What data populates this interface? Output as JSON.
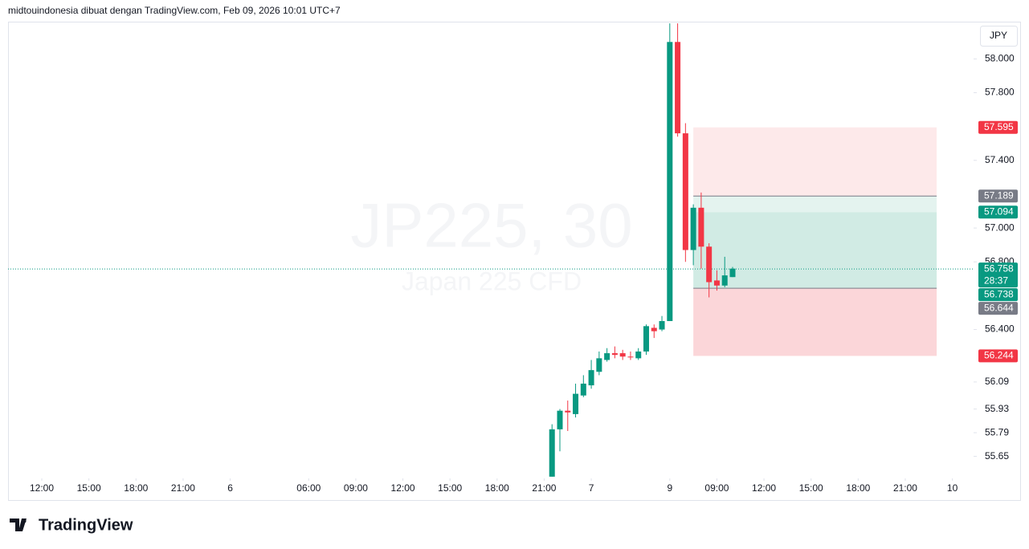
{
  "header": "midtouindonesia dibuat dengan TradingView.com, Feb 09, 2026 10:01 UTC+7",
  "watermark": {
    "symbol": "JP225, 30",
    "name": "Japan 225 CFD"
  },
  "currency": "JPY",
  "logo": "TradingView",
  "chart_data": {
    "type": "candlestick",
    "up_color": "#089981",
    "down_color": "#f23645",
    "x": [
      65,
      66,
      67,
      68,
      69,
      70,
      71,
      72,
      73,
      74,
      75,
      76,
      77,
      78,
      79,
      80,
      81,
      82,
      83,
      84,
      85,
      86,
      87,
      88
    ],
    "open": [
      55.53,
      55.81,
      55.92,
      55.9,
      56.01,
      56.07,
      56.15,
      56.22,
      56.26,
      56.26,
      56.24,
      56.23,
      56.27,
      56.41,
      56.4,
      56.45,
      58.1,
      57.56,
      56.87,
      57.12,
      56.89,
      56.69,
      56.66,
      56.71
    ],
    "high": [
      55.84,
      55.93,
      55.98,
      56.08,
      56.13,
      56.22,
      56.27,
      56.29,
      56.3,
      56.28,
      56.27,
      56.29,
      56.43,
      56.43,
      56.48,
      58.21,
      58.21,
      57.62,
      57.14,
      57.21,
      56.91,
      56.75,
      56.83,
      56.77
    ],
    "low": [
      55.53,
      55.68,
      55.8,
      55.88,
      56.0,
      56.05,
      56.13,
      56.21,
      56.23,
      56.22,
      56.22,
      56.22,
      56.25,
      56.35,
      56.39,
      56.45,
      57.54,
      56.8,
      56.78,
      56.76,
      56.59,
      56.63,
      56.65,
      56.71
    ],
    "close": [
      55.81,
      55.92,
      55.91,
      56.02,
      56.08,
      56.16,
      56.23,
      56.26,
      56.25,
      56.24,
      56.235,
      56.27,
      56.42,
      56.39,
      56.45,
      58.1,
      57.56,
      56.87,
      57.12,
      56.89,
      56.68,
      56.66,
      56.72,
      56.76
    ],
    "xlim": [
      -4.3,
      118.7
    ],
    "xticks": [
      {
        "value": 0,
        "label": "12:00"
      },
      {
        "value": 6,
        "label": "15:00"
      },
      {
        "value": 12,
        "label": "18:00"
      },
      {
        "value": 18,
        "label": "21:00"
      },
      {
        "value": 24,
        "label": "6"
      },
      {
        "value": 34,
        "label": "06:00"
      },
      {
        "value": 40,
        "label": "09:00"
      },
      {
        "value": 46,
        "label": "12:00"
      },
      {
        "value": 52,
        "label": "15:00"
      },
      {
        "value": 58,
        "label": "18:00"
      },
      {
        "value": 64,
        "label": "21:00"
      },
      {
        "value": 70,
        "label": "7"
      },
      {
        "value": 80,
        "label": "9"
      },
      {
        "value": 86,
        "label": "09:00"
      },
      {
        "value": 92,
        "label": "12:00"
      },
      {
        "value": 98,
        "label": "15:00"
      },
      {
        "value": 104,
        "label": "18:00"
      },
      {
        "value": 110,
        "label": "21:00"
      },
      {
        "value": 116,
        "label": "10"
      }
    ],
    "ylim": [
      55.52,
      58.22
    ],
    "yticks": [
      {
        "value": 58,
        "label": "58.000"
      },
      {
        "value": 57.8,
        "label": "57.800"
      },
      {
        "value": 57.4,
        "label": "57.400"
      },
      {
        "value": 57,
        "label": "57.000"
      },
      {
        "value": 56.8,
        "label": "56.800"
      },
      {
        "value": 56.4,
        "label": "56.400"
      },
      56.09,
      55.93,
      55.79,
      55.65
    ],
    "zones_x": [
      83,
      114
    ],
    "zones": [
      {
        "from": 57.595,
        "to": 57.189,
        "color": "#fde9ea"
      },
      {
        "from": 57.189,
        "to": 57.094,
        "color": "#e4f3ef"
      },
      {
        "from": 57.094,
        "to": 56.644,
        "color": "#d1ebe4"
      },
      {
        "from": 56.644,
        "to": 56.244,
        "color": "#fbd6d9"
      }
    ],
    "zone_lines": [
      57.189,
      56.644
    ],
    "last_price": 56.758,
    "last_price_color": "#089981",
    "countdown": "28:37",
    "price_labels": [
      {
        "value": 57.595,
        "color": "#f23645"
      },
      {
        "value": 57.189,
        "color": "#787b86"
      },
      {
        "value": 57.094,
        "color": "#089981"
      },
      {
        "value": 56.738,
        "color": "#089981"
      },
      {
        "value": 56.644,
        "color": "#787b86"
      },
      {
        "value": 56.244,
        "color": "#f23645"
      }
    ]
  }
}
